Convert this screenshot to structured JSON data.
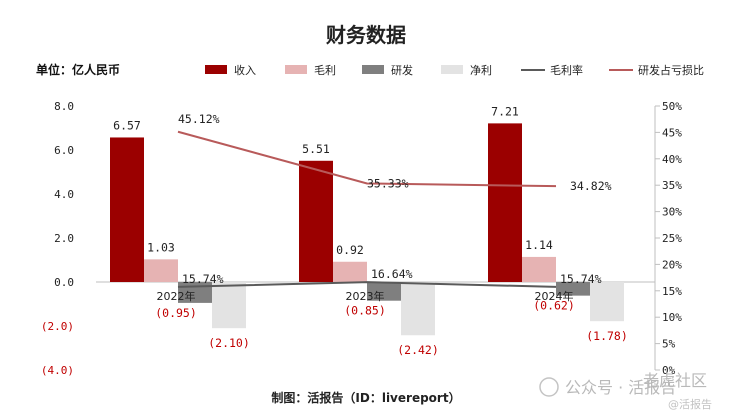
{
  "chart_data": {
    "type": "bar",
    "title": "财务数据",
    "unit_label": "单位：亿人民币",
    "categories": [
      "2022年",
      "2023年",
      "2024年"
    ],
    "series": [
      {
        "name": "收入",
        "kind": "bar",
        "color": "#9b0000",
        "values": [
          6.57,
          5.51,
          7.21
        ],
        "labels": [
          "6.57",
          "5.51",
          "7.21"
        ]
      },
      {
        "name": "毛利",
        "kind": "bar",
        "color": "#e6b3b3",
        "values": [
          1.03,
          0.92,
          1.14
        ],
        "labels": [
          "1.03",
          "0.92",
          "1.14"
        ]
      },
      {
        "name": "研发",
        "kind": "bar",
        "color": "#7f7f7f",
        "values": [
          -0.95,
          -0.85,
          -0.62
        ],
        "labels": [
          "(0.95)",
          "(0.85)",
          "(0.62)"
        ]
      },
      {
        "name": "净利",
        "kind": "bar",
        "color": "#e3e3e3",
        "values": [
          -2.1,
          -2.42,
          -1.78
        ],
        "labels": [
          "(2.10)",
          "(2.42)",
          "(1.78)"
        ]
      },
      {
        "name": "毛利率",
        "kind": "line",
        "axis": "right",
        "color": "#5a5a5a",
        "values": [
          15.74,
          16.64,
          15.74
        ],
        "labels": [
          "15.74%",
          "16.64%",
          "15.74%"
        ]
      },
      {
        "name": "研发占亏损比",
        "kind": "line",
        "axis": "right",
        "color": "#b85a5a",
        "values": [
          45.12,
          35.33,
          34.82
        ],
        "labels": [
          "45.12%",
          "35.33%",
          "34.82%"
        ]
      }
    ],
    "left_axis": {
      "min": -4.0,
      "max": 8.0,
      "step": 2.0,
      "tick_labels": [
        "(4.0)",
        "(2.0)",
        "0.0",
        "2.0",
        "4.0",
        "6.0",
        "8.0"
      ]
    },
    "right_axis": {
      "min": 0,
      "max": 50,
      "step": 5,
      "tick_labels": [
        "0%",
        "5%",
        "10%",
        "15%",
        "20%",
        "25%",
        "30%",
        "35%",
        "40%",
        "45%",
        "50%"
      ]
    },
    "grid": false,
    "legend_position": "top"
  },
  "footer": "制图：活报告（ID：livereport）",
  "watermark": {
    "main": "公众号 · 活报告",
    "corner_top": "老虎社区",
    "corner_bottom": "@活报告"
  }
}
